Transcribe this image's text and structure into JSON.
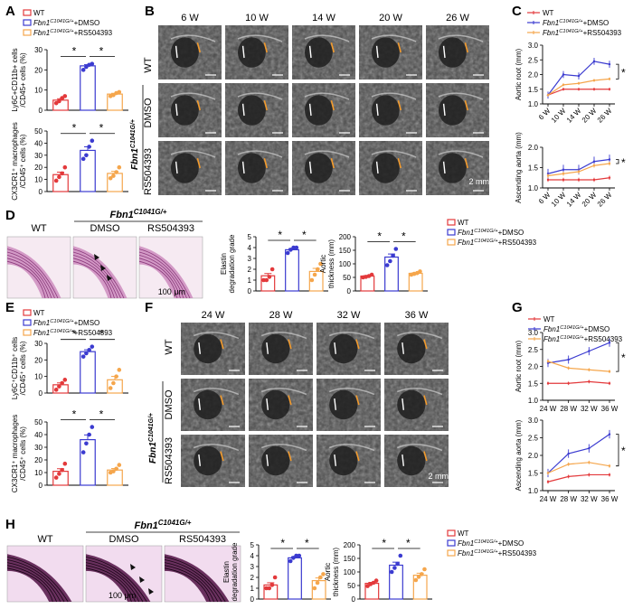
{
  "panels": {
    "A": "A",
    "B": "B",
    "C": "C",
    "D": "D",
    "E": "E",
    "F": "F",
    "G": "G",
    "H": "H"
  },
  "legend": {
    "wt": "WT",
    "gene": "Fbn1",
    "genotype": "C1041G/+",
    "dmso_suffix": "+DMSO",
    "rs_suffix": "+RS504393"
  },
  "colors": {
    "wt": "#e3393b",
    "dmso": "#3b3bd0",
    "rs": "#f5a64c"
  },
  "images": {
    "timepoints_early": [
      "6 W",
      "10 W",
      "14 W",
      "20 W",
      "26 W"
    ],
    "timepoints_late": [
      "24 W",
      "28 W",
      "32 W",
      "36 W"
    ],
    "row_wt": "WT",
    "row_dmso": "DMSO",
    "row_rs": "RS504393",
    "scale_2mm": "2 mm",
    "scale_100um": "100 μm",
    "histo_wt": "WT",
    "histo_dmso": "DMSO",
    "histo_rs": "RS504393"
  },
  "significance": "*",
  "chart_data": [
    {
      "id": "A-top",
      "type": "bar",
      "categories": [
        "WT",
        "Fbn1C1041G/+ +DMSO",
        "Fbn1C1041G/+ +RS504393"
      ],
      "values": [
        5,
        22,
        8
      ],
      "points": [
        [
          3.5,
          4.5,
          6,
          7
        ],
        [
          20,
          21.5,
          22.5,
          23
        ],
        [
          7,
          7.5,
          8.5,
          9
        ]
      ],
      "ylabel": [
        "Ly6C",
        "+",
        "CD11b",
        "+",
        " cells"
      ],
      "ylabel2": "/CD45",
      "ylabel2b": "+",
      "ylabel2c": " cells (%)",
      "ylim": [
        0,
        30
      ],
      "yticks": [
        "0",
        "10",
        "20",
        "30"
      ]
    },
    {
      "id": "A-bottom",
      "type": "bar",
      "categories": [
        "WT",
        "Fbn1C1041G/+ +DMSO",
        "Fbn1C1041G/+ +RS504393"
      ],
      "values": [
        14,
        34,
        15
      ],
      "points": [
        [
          9,
          12,
          15,
          20
        ],
        [
          27,
          30,
          37,
          42
        ],
        [
          11,
          13,
          16,
          20
        ]
      ],
      "ylabel": "CX3CR1⁺ macrophages",
      "ylabel2": "/CD45⁺ cells (%)",
      "ylim": [
        0,
        50
      ],
      "yticks": [
        "0",
        "10",
        "20",
        "30",
        "40",
        "50"
      ]
    },
    {
      "id": "C-top",
      "type": "line",
      "x": [
        "6 W",
        "10 W",
        "14 W",
        "20 W",
        "26 W"
      ],
      "ylabel": "Aortic root (mm)",
      "ylim": [
        1.0,
        3.0
      ],
      "yticks": [
        "1.0",
        "1.5",
        "2.0",
        "2.5",
        "3.0"
      ],
      "series": [
        {
          "name": "WT",
          "values": [
            1.3,
            1.5,
            1.5,
            1.5,
            1.5
          ]
        },
        {
          "name": "Fbn1C1041G/+ +DMSO",
          "values": [
            1.3,
            2.0,
            1.95,
            2.45,
            2.35
          ]
        },
        {
          "name": "Fbn1C1041G/+ +RS504393",
          "values": [
            1.3,
            1.65,
            1.7,
            1.8,
            1.85
          ]
        }
      ]
    },
    {
      "id": "C-bottom",
      "type": "line",
      "x": [
        "6 W",
        "10 W",
        "14 W",
        "20 W",
        "26 W"
      ],
      "ylabel": "Ascending aorta (mm)",
      "ylim": [
        1.0,
        2.0
      ],
      "yticks": [
        "1.0",
        "1.5",
        "2.0"
      ],
      "series": [
        {
          "name": "WT",
          "values": [
            1.2,
            1.2,
            1.2,
            1.2,
            1.25
          ]
        },
        {
          "name": "Fbn1C1041G/+ +DMSO",
          "values": [
            1.35,
            1.45,
            1.45,
            1.65,
            1.7
          ]
        },
        {
          "name": "Fbn1C1041G/+ +RS504393",
          "values": [
            1.3,
            1.35,
            1.4,
            1.55,
            1.6
          ]
        }
      ]
    },
    {
      "id": "D-elastin",
      "type": "bar",
      "categories": [
        "WT",
        "Fbn1C1041G/+ +DMSO",
        "Fbn1C1041G/+ +RS504393"
      ],
      "values": [
        1.4,
        3.8,
        1.8
      ],
      "points": [
        [
          1,
          1,
          1.3,
          2
        ],
        [
          3.5,
          3.8,
          4,
          4
        ],
        [
          1,
          1.5,
          2,
          2.5
        ]
      ],
      "ylabel": "Elastin",
      "ylabel2": "degradation grade",
      "ylim": [
        0,
        5
      ],
      "yticks": [
        "0",
        "1",
        "2",
        "3",
        "4",
        "5"
      ]
    },
    {
      "id": "D-thickness",
      "type": "bar",
      "categories": [
        "WT",
        "Fbn1C1041G/+ +DMSO",
        "Fbn1C1041G/+ +RS504393"
      ],
      "values": [
        55,
        125,
        65
      ],
      "points": [
        [
          50,
          52,
          55,
          60
        ],
        [
          95,
          110,
          130,
          155
        ],
        [
          60,
          63,
          66,
          72
        ]
      ],
      "ylabel": "Aortic",
      "ylabel2": "thickness (mm)",
      "ylim": [
        0,
        200
      ],
      "yticks": [
        "0",
        "50",
        "100",
        "150",
        "200"
      ]
    },
    {
      "id": "E-top",
      "type": "bar",
      "categories": [
        "WT",
        "Fbn1C1041G/+ +DMSO",
        "Fbn1C1041G/+ +RS504393"
      ],
      "values": [
        5,
        25,
        8
      ],
      "points": [
        [
          2,
          4,
          6,
          8
        ],
        [
          22,
          24,
          26,
          28
        ],
        [
          3,
          6,
          10,
          14
        ]
      ],
      "ylabel": "Ly6C⁺CD11b⁺ cells",
      "ylabel2": "/CD45⁺ cells (%)",
      "ylim": [
        0,
        30
      ],
      "yticks": [
        "0",
        "10",
        "20",
        "30"
      ]
    },
    {
      "id": "E-bottom",
      "type": "bar",
      "categories": [
        "WT",
        "Fbn1C1041G/+ +DMSO",
        "Fbn1C1041G/+ +RS504393"
      ],
      "values": [
        11,
        36,
        12
      ],
      "points": [
        [
          6,
          9,
          12,
          17
        ],
        [
          26,
          33,
          40,
          46
        ],
        [
          10,
          11,
          13,
          16
        ]
      ],
      "ylabel": "CX3CR1⁺ macrophages",
      "ylabel2": "/CD45⁺ cells (%)",
      "ylim": [
        0,
        50
      ],
      "yticks": [
        "0",
        "10",
        "20",
        "30",
        "40",
        "50"
      ]
    },
    {
      "id": "G-top",
      "type": "line",
      "x": [
        "24 W",
        "28 W",
        "32 W",
        "36 W"
      ],
      "ylabel": "Aortic root (mm)",
      "ylim": [
        1.0,
        3.0
      ],
      "yticks": [
        "1.0",
        "1.5",
        "2.0",
        "2.5",
        "3.0"
      ],
      "series": [
        {
          "name": "WT",
          "values": [
            1.5,
            1.5,
            1.55,
            1.5
          ]
        },
        {
          "name": "Fbn1C1041G/+ +DMSO",
          "values": [
            2.1,
            2.2,
            2.45,
            2.7
          ]
        },
        {
          "name": "Fbn1C1041G/+ +RS504393",
          "values": [
            2.15,
            1.95,
            1.9,
            1.85
          ]
        }
      ]
    },
    {
      "id": "G-bottom",
      "type": "line",
      "x": [
        "24 W",
        "28 W",
        "32 W",
        "36 W"
      ],
      "ylabel": "Ascending aorta (mm)",
      "ylim": [
        1.0,
        3.0
      ],
      "yticks": [
        "1.0",
        "1.5",
        "2.0",
        "2.5",
        "3.0"
      ],
      "series": [
        {
          "name": "WT",
          "values": [
            1.25,
            1.4,
            1.45,
            1.45
          ]
        },
        {
          "name": "Fbn1C1041G/+ +DMSO",
          "values": [
            1.5,
            2.05,
            2.2,
            2.6
          ]
        },
        {
          "name": "Fbn1C1041G/+ +RS504393",
          "values": [
            1.5,
            1.75,
            1.8,
            1.7
          ]
        }
      ]
    },
    {
      "id": "H-elastin",
      "type": "bar",
      "categories": [
        "WT",
        "Fbn1C1041G/+ +DMSO",
        "Fbn1C1041G/+ +RS504393"
      ],
      "values": [
        1.3,
        3.8,
        1.7
      ],
      "points": [
        [
          1,
          1,
          1.3,
          2
        ],
        [
          3.5,
          3.8,
          4,
          4
        ],
        [
          1,
          1.5,
          2,
          2.3
        ]
      ],
      "ylabel": "Elastin",
      "ylabel2": "degradation grade",
      "ylim": [
        0,
        5
      ],
      "yticks": [
        "0",
        "1",
        "2",
        "3",
        "4",
        "5"
      ]
    },
    {
      "id": "H-thickness",
      "type": "bar",
      "categories": [
        "WT",
        "Fbn1C1041G/+ +DMSO",
        "Fbn1C1041G/+ +RS504393"
      ],
      "values": [
        58,
        125,
        88
      ],
      "points": [
        [
          48,
          55,
          60,
          68
        ],
        [
          100,
          115,
          130,
          160
        ],
        [
          70,
          82,
          92,
          110
        ]
      ],
      "ylabel": "Aortic",
      "ylabel2": "thickness (mm)",
      "ylim": [
        0,
        200
      ],
      "yticks": [
        "0",
        "50",
        "100",
        "150",
        "200"
      ]
    }
  ]
}
